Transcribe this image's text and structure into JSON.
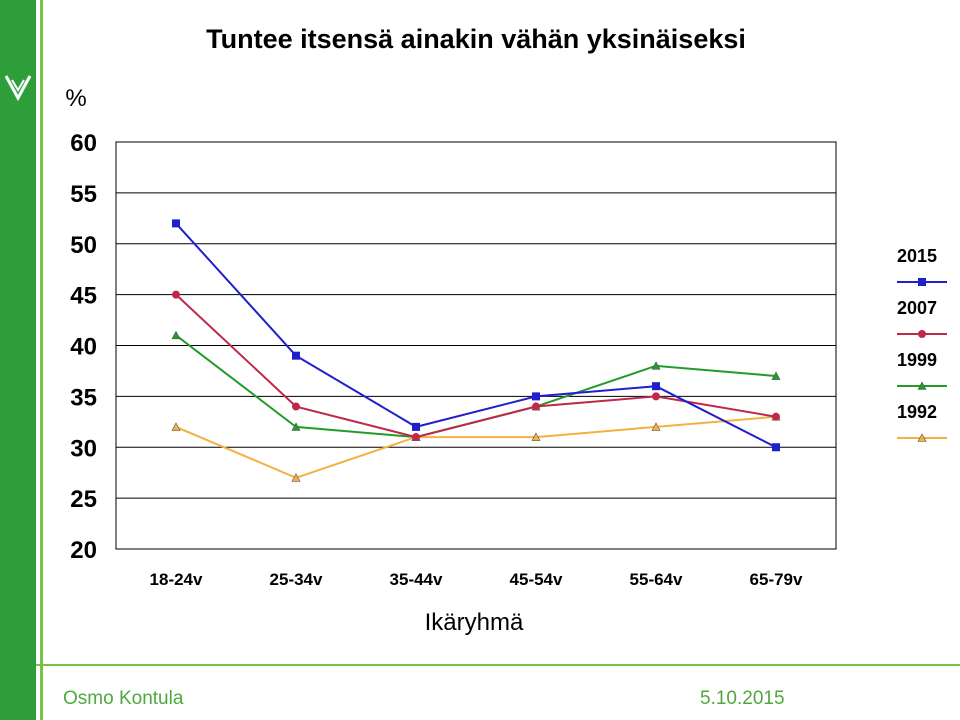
{
  "footer": {
    "author": "Osmo Kontula",
    "date": "5.10.2015"
  },
  "colors": {
    "brand_green": "#2e9e3a",
    "accent_green": "#7cc242"
  },
  "chart_data": {
    "type": "line",
    "title": "Tuntee itsensä ainakin vähän yksinäiseksi",
    "ylabel": "%",
    "xlabel": "Ikäryhmä",
    "ylim": [
      20,
      60
    ],
    "yticks": [
      "20",
      "25",
      "30",
      "35",
      "40",
      "45",
      "50",
      "55",
      "60"
    ],
    "categories": [
      "18-24v",
      "25-34v",
      "35-44v",
      "45-54v",
      "55-64v",
      "65-79v"
    ],
    "grid": true,
    "legend_position": "right",
    "series": [
      {
        "name": "2015",
        "color": "#1f1fcc",
        "marker": "square",
        "values": [
          52,
          39,
          32,
          35,
          36,
          30
        ]
      },
      {
        "name": "2007",
        "color": "#c0284a",
        "marker": "circle",
        "values": [
          45,
          34,
          31,
          34,
          35,
          33
        ]
      },
      {
        "name": "1999",
        "color": "#239b2a",
        "marker": "triangle",
        "values": [
          41,
          32,
          31,
          34,
          38,
          37
        ]
      },
      {
        "name": "1992",
        "color": "#f5b041",
        "marker": "triangle",
        "values": [
          32,
          27,
          31,
          31,
          32,
          33
        ]
      }
    ]
  }
}
